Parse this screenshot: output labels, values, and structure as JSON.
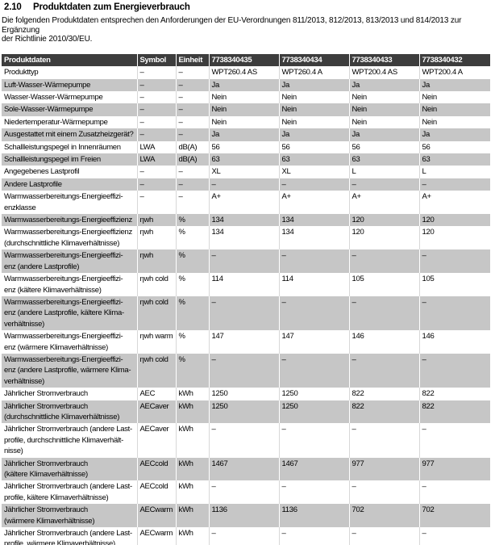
{
  "page": {
    "section_number": "2.10",
    "section_title": "Produktdaten zum Energieverbrauch",
    "intro": "Die folgenden Produktdaten entsprechen den Anforderungen der EU-Verordnungen 811/2013, 812/2013, 813/2013 und 814/2013 zur Ergänzung\nder Richtlinie 2010/30/EU."
  },
  "colors": {
    "header_bg": "#3d3d3d",
    "header_text": "#ffffff",
    "alt_row_bg": "#c6c6c6"
  },
  "table": {
    "columns": [
      "Produktdaten",
      "Symbol",
      "Einheit",
      "7738340435",
      "7738340434",
      "7738340433",
      "7738340432"
    ],
    "rows": [
      {
        "label": "Produkttyp",
        "symbol": "–",
        "unit": "–",
        "values": [
          "WPT260.4 AS",
          "WPT260.4 A",
          "WPT200.4 AS",
          "WPT200.4 A"
        ]
      },
      {
        "label": "Luft-Wasser-Wärmepumpe",
        "symbol": "–",
        "unit": "–",
        "values": [
          "Ja",
          "Ja",
          "Ja",
          "Ja"
        ]
      },
      {
        "label": "Wasser-Wasser-Wärmepumpe",
        "symbol": "–",
        "unit": "–",
        "values": [
          "Nein",
          "Nein",
          "Nein",
          "Nein"
        ]
      },
      {
        "label": "Sole-Wasser-Wärmepumpe",
        "symbol": "–",
        "unit": "–",
        "values": [
          "Nein",
          "Nein",
          "Nein",
          "Nein"
        ]
      },
      {
        "label": "Niedertemperatur-Wärmepumpe",
        "symbol": "–",
        "unit": "–",
        "values": [
          "Nein",
          "Nein",
          "Nein",
          "Nein"
        ]
      },
      {
        "label": "Ausgestattet mit einem Zusatzheizgerät?",
        "symbol": "–",
        "unit": "–",
        "values": [
          "Ja",
          "Ja",
          "Ja",
          "Ja"
        ]
      },
      {
        "label": "Schallleistungspegel in Innenräumen",
        "symbol": "LWA",
        "unit": "dB(A)",
        "values": [
          "56",
          "56",
          "56",
          "56"
        ]
      },
      {
        "label": "Schallleistungspegel im Freien",
        "symbol": "LWA",
        "unit": "dB(A)",
        "values": [
          "63",
          "63",
          "63",
          "63"
        ]
      },
      {
        "label": "Angegebenes Lastprofil",
        "symbol": "–",
        "unit": "–",
        "values": [
          "XL",
          "XL",
          "L",
          "L"
        ]
      },
      {
        "label": "Andere Lastprofile",
        "symbol": "–",
        "unit": "–",
        "values": [
          "–",
          "–",
          "–",
          "–"
        ]
      },
      {
        "label": "Warmwasserbereitungs-Energieeffizi-\nenzklasse",
        "symbol": "–",
        "unit": "–",
        "values": [
          "A+",
          "A+",
          "A+",
          "A+"
        ]
      },
      {
        "label": "Warmwasserbereitungs-Energieeffizienz",
        "symbol": "ηwh",
        "unit": "%",
        "values": [
          "134",
          "134",
          "120",
          "120"
        ]
      },
      {
        "label": "Warmwasserbereitungs-Energieeffizienz\n(durchschnittliche Klimaverhältnisse)",
        "symbol": "ηwh",
        "unit": "%",
        "values": [
          "134",
          "134",
          "120",
          "120"
        ]
      },
      {
        "label": "Warmwasserbereitungs-Energieeffizi-\nenz (andere Lastprofile)",
        "symbol": "ηwh",
        "unit": "%",
        "values": [
          "–",
          "–",
          "–",
          "–"
        ]
      },
      {
        "label": "Warmwasserbereitungs-Energieeffizi-\nenz (kältere Klimaverhältnisse)",
        "symbol": "ηwh cold",
        "unit": "%",
        "values": [
          "114",
          "114",
          "105",
          "105"
        ]
      },
      {
        "label": "Warmwasserbereitungs-Energieeffizi-\nenz (andere Lastprofile, kältere Klima-\nverhältnisse)",
        "symbol": "ηwh cold",
        "unit": "%",
        "values": [
          "–",
          "–",
          "–",
          "–"
        ]
      },
      {
        "label": "Warmwasserbereitungs-Energieeffizi-\nenz (wärmere Klimaverhältnisse)",
        "symbol": "ηwh warm",
        "unit": "%",
        "values": [
          "147",
          "147",
          "146",
          "146"
        ]
      },
      {
        "label": "Warmwasserbereitungs-Energieeffizi-\nenz (andere Lastprofile, wärmere Klima-\nverhältnisse)",
        "symbol": "ηwh cold",
        "unit": "%",
        "values": [
          "–",
          "–",
          "–",
          "–"
        ]
      },
      {
        "label": "Jährlicher Stromverbrauch",
        "symbol": "AEC",
        "unit": "kWh",
        "values": [
          "1250",
          "1250",
          "822",
          "822"
        ]
      },
      {
        "label": "Jährlicher Stromverbrauch\n(durchschnittliche Klimaverhältnisse)",
        "symbol": "AECaver",
        "unit": "kWh",
        "values": [
          "1250",
          "1250",
          "822",
          "822"
        ]
      },
      {
        "label": "Jährlicher Stromverbrauch (andere Last-\nprofile, durchschnittliche Klimaverhält-\nnisse)",
        "symbol": "AECaver",
        "unit": "kWh",
        "values": [
          "–",
          "–",
          "–",
          "–"
        ]
      },
      {
        "label": "Jährlicher Stromverbrauch\n(kältere Klimaverhältnisse)",
        "symbol": "AECcold",
        "unit": "kWh",
        "values": [
          "1467",
          "1467",
          "977",
          "977"
        ]
      },
      {
        "label": "Jährlicher Stromverbrauch (andere Last-\nprofile, kältere Klimaverhältnisse)",
        "symbol": "AECcold",
        "unit": "kWh",
        "values": [
          "–",
          "–",
          "–",
          "–"
        ]
      },
      {
        "label": "Jährlicher Stromverbrauch\n(wärmere Klimaverhältnisse)",
        "symbol": "AECwarm",
        "unit": "kWh",
        "values": [
          "1136",
          "1136",
          "702",
          "702"
        ]
      },
      {
        "label": "Jährlicher Stromverbrauch (andere Last-\nprofile, wärmere Klimaverhältnisse)",
        "symbol": "AECwarm",
        "unit": "kWh",
        "values": [
          "–",
          "–",
          "–",
          "–"
        ]
      }
    ]
  }
}
